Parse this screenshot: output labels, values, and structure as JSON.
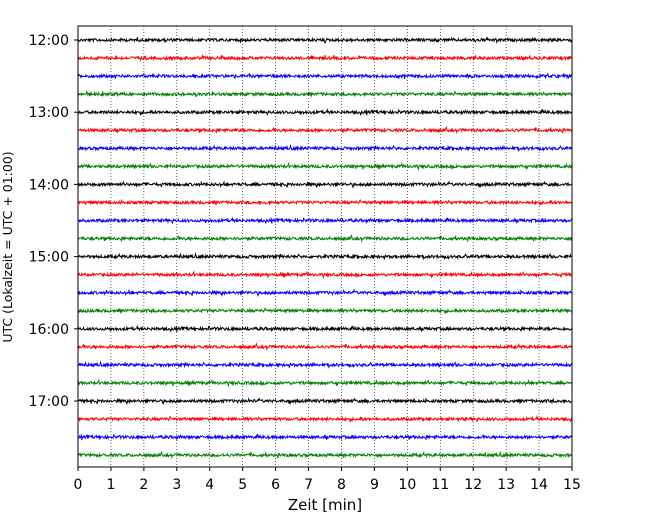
{
  "chart_data": {
    "type": "line",
    "xlabel": "Zeit  [min]",
    "ylabel": "UTC (Lokalzeit = UTC + 01:00)",
    "xlim": [
      0,
      15
    ],
    "xticks": [
      "0",
      "1",
      "2",
      "3",
      "4",
      "5",
      "6",
      "7",
      "8",
      "9",
      "10",
      "11",
      "12",
      "13",
      "14",
      "15"
    ],
    "ytick_labels": [
      "12:00",
      "13:00",
      "14:00",
      "15:00",
      "16:00",
      "17:00"
    ],
    "grid": "vertical-dotted",
    "trace_interval_min": 15,
    "trace_colors": [
      "#000000",
      "#ff0000",
      "#0000ff",
      "#008000"
    ],
    "traces": [
      {
        "start": "12:00",
        "color": "#000000"
      },
      {
        "start": "12:15",
        "color": "#ff0000"
      },
      {
        "start": "12:30",
        "color": "#0000ff"
      },
      {
        "start": "12:45",
        "color": "#008000"
      },
      {
        "start": "13:00",
        "color": "#000000"
      },
      {
        "start": "13:15",
        "color": "#ff0000"
      },
      {
        "start": "13:30",
        "color": "#0000ff"
      },
      {
        "start": "13:45",
        "color": "#008000"
      },
      {
        "start": "14:00",
        "color": "#000000"
      },
      {
        "start": "14:15",
        "color": "#ff0000"
      },
      {
        "start": "14:30",
        "color": "#0000ff"
      },
      {
        "start": "14:45",
        "color": "#008000"
      },
      {
        "start": "15:00",
        "color": "#000000"
      },
      {
        "start": "15:15",
        "color": "#ff0000"
      },
      {
        "start": "15:30",
        "color": "#0000ff"
      },
      {
        "start": "15:45",
        "color": "#008000"
      },
      {
        "start": "16:00",
        "color": "#000000"
      },
      {
        "start": "16:15",
        "color": "#ff0000"
      },
      {
        "start": "16:30",
        "color": "#0000ff"
      },
      {
        "start": "16:45",
        "color": "#008000"
      },
      {
        "start": "17:00",
        "color": "#000000"
      },
      {
        "start": "17:15",
        "color": "#ff0000"
      },
      {
        "start": "17:30",
        "color": "#0000ff"
      },
      {
        "start": "17:45",
        "color": "#008000"
      }
    ]
  }
}
